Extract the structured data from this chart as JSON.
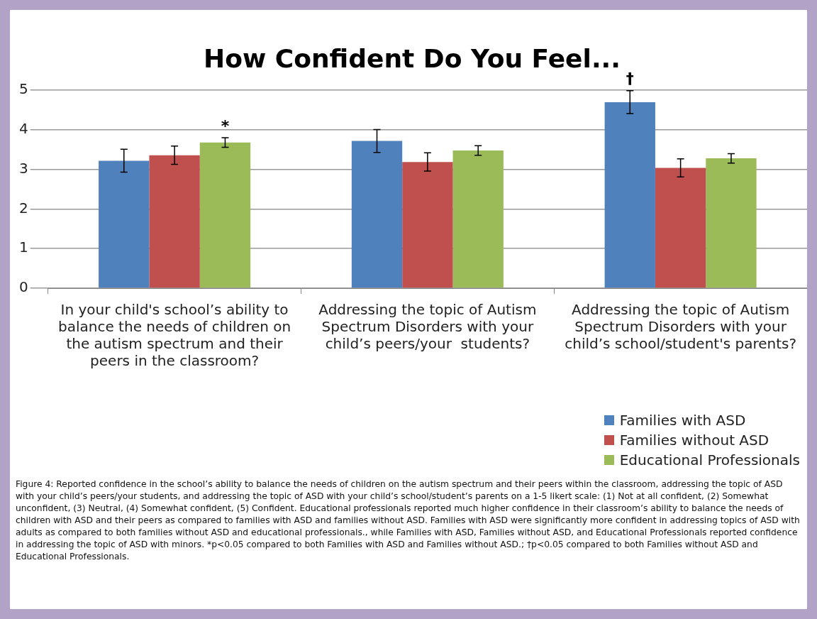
{
  "chart_data": {
    "type": "bar",
    "title": "How Confident Do You Feel...",
    "categories": [
      "In your child's school’s ability to balance the needs of children on the autism spectrum and their peers in the classroom?",
      "Addressing the topic of Autism Spectrum Disorders with your child’s peers/your  students?",
      "Addressing the topic of Autism Spectrum Disorders with your child’s school/student's parents?"
    ],
    "series": [
      {
        "name": "Families with ASD",
        "color": "#4f81bd",
        "values": [
          3.22,
          3.72,
          4.7
        ],
        "errors": [
          0.29,
          0.29,
          0.29
        ]
      },
      {
        "name": "Families without ASD",
        "color": "#c0504d",
        "values": [
          3.36,
          3.19,
          3.04
        ],
        "errors": [
          0.23,
          0.23,
          0.23
        ]
      },
      {
        "name": "Educational Professionals",
        "color": "#9bbb59",
        "values": [
          3.68,
          3.48,
          3.28
        ],
        "errors": [
          0.12,
          0.12,
          0.12
        ]
      }
    ],
    "ylim": [
      0,
      5
    ],
    "yticks": [
      0,
      1,
      2,
      3,
      4,
      5
    ],
    "grid": "y",
    "legend": "bottom right",
    "annotations": [
      "*",
      "†",
      "Figure 4: Reported confidence in the school’s ability to balance the needs of children on the autism spectrum and their peers within the classroom, addressing the topic of ASD with your child’s peers/your students, and addressing the topic of ASD with your child’s school/student’s parents on a 1-5 likert scale: (1) Not at all confident, (2) Somewhat unconfident, (3) Neutral, (4) Somewhat confident, (5) Confident. Educational professionals reported much higher confidence in their classroom’s ability to balance the needs of children with ASD and their peers as compared to families with ASD and families without ASD. Families with ASD were significantly more confident in addressing topics of ASD with adults as compared to both families without ASD and educational professionals., while Families with ASD, Families without ASD, and Educational Professionals reported confidence in addressing the topic of ASD with minors. *p<0.05 compared to both Families with ASD and Families without ASD.; †p<0.05 compared to  both Families without ASD and Educational Professionals."
    ]
  }
}
